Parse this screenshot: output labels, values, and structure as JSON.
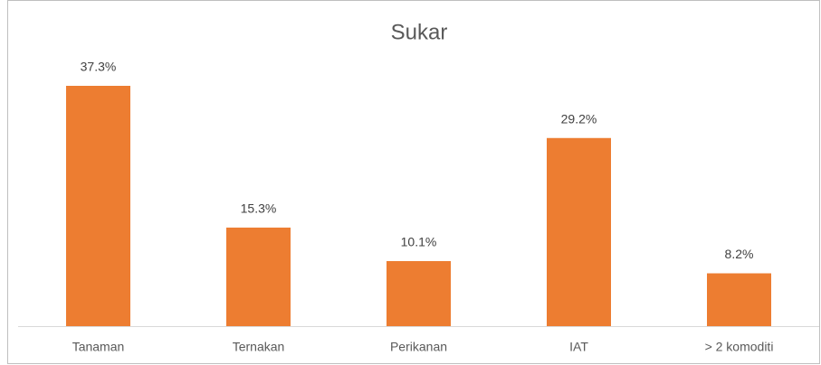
{
  "chart_data": {
    "type": "bar",
    "title": "Sukar",
    "categories": [
      "Tanaman",
      "Ternakan",
      "Perikanan",
      "IAT",
      "> 2 komoditi"
    ],
    "values": [
      37.3,
      15.3,
      10.1,
      29.2,
      8.2
    ],
    "value_labels": [
      "37.3%",
      "15.3%",
      "10.1%",
      "29.2%",
      "8.2%"
    ],
    "color": "#ed7d31"
  }
}
